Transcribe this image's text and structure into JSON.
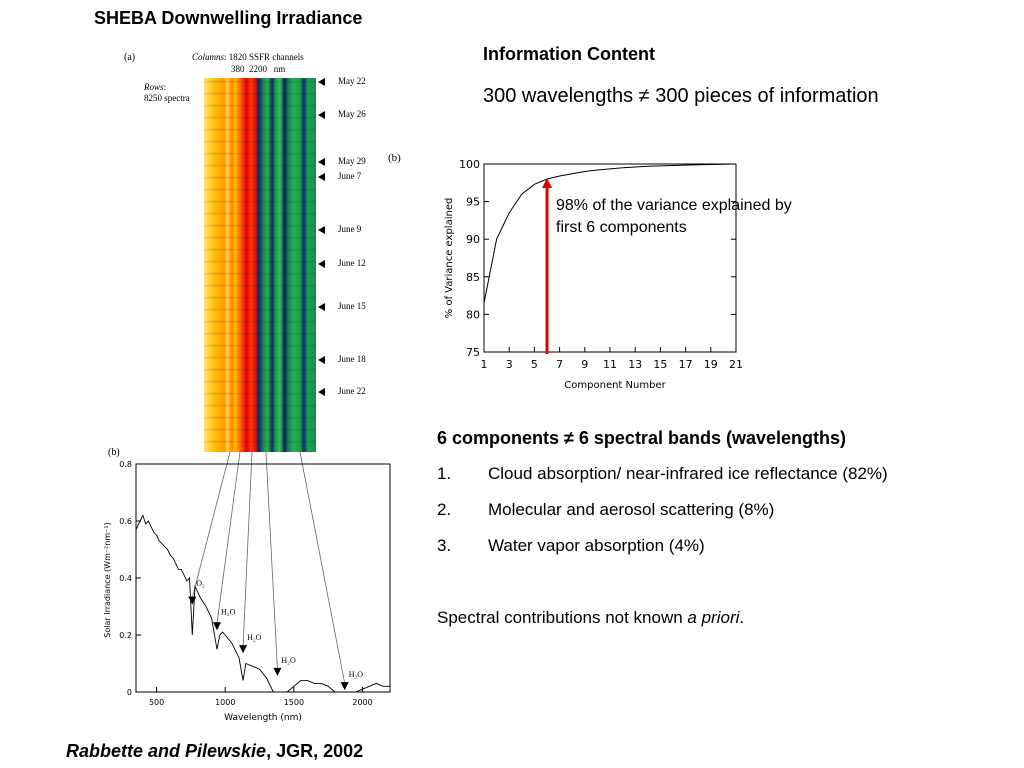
{
  "slide": {
    "title": "SHEBA Downwelling Irradiance",
    "citation": {
      "authors": "Rabbette and Pilewskie",
      "rest": ", JGR, 2002"
    }
  },
  "info": {
    "heading": "Information Content",
    "subheading": "300 wavelengths ≠ 300 pieces of information"
  },
  "components": {
    "heading": "6 components ≠ 6 spectral bands (wavelengths)",
    "items": [
      {
        "num": "1.",
        "text": "Cloud absorption/ near-infrared ice reflectance (82%)"
      },
      {
        "num": "2.",
        "text": "Molecular and aerosol scattering (8%)"
      },
      {
        "num": "3.",
        "text": "Water vapor absorption (4%)"
      }
    ],
    "note_prefix": "Spectral contributions not known ",
    "note_italic": "a priori",
    "note_suffix": "."
  },
  "fig_a": {
    "panel_label": "(a)",
    "columns_label": "Columns",
    "columns_text": ": 1820 SSFR channels",
    "columns_range": "380  2200   nm",
    "rows_label": "Rows",
    "rows_text": "8250 spectra",
    "dates": [
      "May 22",
      "May 26",
      "May 29",
      "June 7",
      "June 9",
      "June 12",
      "June 15",
      "June 18",
      "June 22"
    ]
  },
  "fig_b": {
    "panel_label": "(b)",
    "ylabel": "% of Variance explained",
    "xlabel": "Component Number",
    "annotation_line1": "98% of the variance explained by",
    "annotation_line2": "first 6 components",
    "annotation_color": "#e00000"
  },
  "fig_c": {
    "panel_label": "(b)",
    "ylabel": "Solar Irradiance (Wm⁻²nm⁻¹)",
    "xlabel": "Wavelength (nm)",
    "band_labels": [
      "O₂",
      "H₂O",
      "H₂O",
      "H₂O",
      "H₂O"
    ]
  },
  "chart_data": [
    {
      "type": "line",
      "title": "",
      "xlabel": "Component Number",
      "ylabel": "% of Variance explained",
      "x": [
        1,
        2,
        3,
        4,
        5,
        6,
        7,
        8,
        9,
        10,
        11,
        12,
        13,
        14,
        15,
        16,
        17,
        18,
        19,
        20,
        21
      ],
      "series": [
        {
          "values": [
            81.5,
            90,
            93.5,
            96,
            97.3,
            98,
            98.4,
            98.7,
            99.0,
            99.2,
            99.35,
            99.5,
            99.6,
            99.7,
            99.75,
            99.8,
            99.85,
            99.9,
            99.93,
            99.96,
            100
          ]
        }
      ],
      "xticks": [
        1,
        3,
        5,
        7,
        9,
        11,
        13,
        15,
        17,
        19,
        21
      ],
      "yticks": [
        75,
        80,
        85,
        90,
        95,
        100
      ],
      "xlim": [
        1,
        21
      ],
      "ylim": [
        75,
        100
      ],
      "grid": false,
      "marker_x": 6
    },
    {
      "type": "line",
      "title": "",
      "xlabel": "Wavelength (nm)",
      "ylabel": "Solar Irradiance (Wm⁻²nm⁻¹)",
      "x": [
        350,
        380,
        400,
        420,
        440,
        460,
        480,
        500,
        520,
        540,
        560,
        580,
        600,
        620,
        640,
        660,
        680,
        700,
        720,
        740,
        760,
        780,
        800,
        820,
        860,
        900,
        940,
        960,
        980,
        1000,
        1050,
        1100,
        1130,
        1150,
        1200,
        1250,
        1300,
        1350,
        1400,
        1450,
        1500,
        1550,
        1600,
        1650,
        1700,
        1750,
        1800,
        1850,
        1900,
        1950,
        2000,
        2050,
        2100,
        2150,
        2200
      ],
      "series": [
        {
          "values": [
            0.57,
            0.6,
            0.62,
            0.59,
            0.6,
            0.58,
            0.56,
            0.55,
            0.53,
            0.52,
            0.51,
            0.5,
            0.48,
            0.47,
            0.45,
            0.43,
            0.43,
            0.41,
            0.39,
            0.4,
            0.2,
            0.37,
            0.35,
            0.33,
            0.3,
            0.26,
            0.15,
            0.2,
            0.21,
            0.2,
            0.17,
            0.12,
            0.04,
            0.1,
            0.09,
            0.08,
            0.05,
            0.0,
            0.0,
            0.0,
            0.02,
            0.04,
            0.04,
            0.03,
            0.03,
            0.02,
            0.0,
            0.0,
            0.0,
            0.0,
            0.01,
            0.02,
            0.03,
            0.02,
            0.02
          ]
        }
      ],
      "xticks": [
        500,
        1000,
        1500,
        2000
      ],
      "yticks": [
        0.0,
        0.2,
        0.4,
        0.6,
        0.8
      ],
      "xlim": [
        350,
        2200
      ],
      "ylim": [
        0.0,
        0.8
      ],
      "grid": false
    }
  ]
}
